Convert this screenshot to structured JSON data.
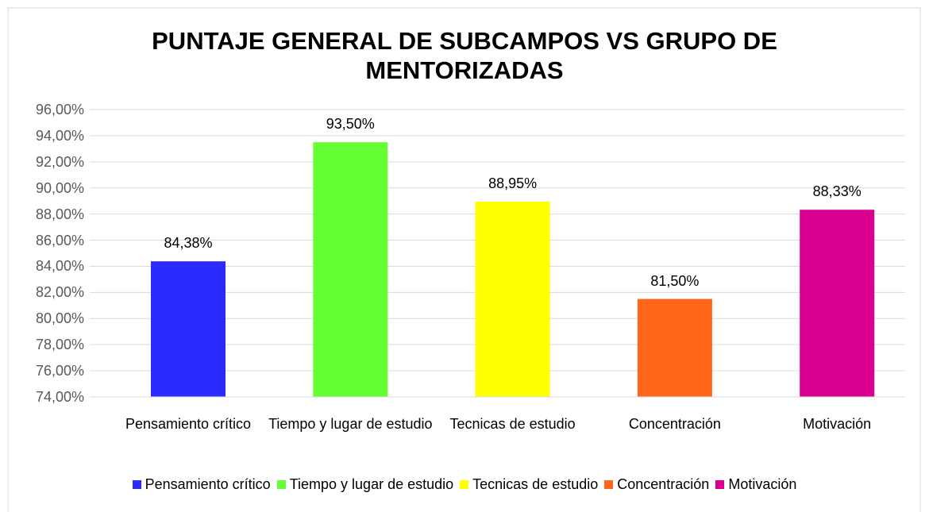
{
  "chart_data": {
    "type": "bar",
    "title": "PUNTAJE GENERAL DE SUBCAMPOS VS GRUPO DE MENTORIZADAS",
    "categories": [
      "Pensamiento crítico",
      "Tiempo y lugar de estudio",
      "Tecnicas de estudio",
      "Concentración",
      "Motivación"
    ],
    "values": [
      84.38,
      93.5,
      88.95,
      81.5,
      88.33
    ],
    "value_labels": [
      "84,38%",
      "93,50%",
      "88,95%",
      "81,50%",
      "88,33%"
    ],
    "colors": [
      "#2b2bff",
      "#66ff33",
      "#ffff00",
      "#ff6619",
      "#d9008f"
    ],
    "ylim": [
      74,
      96
    ],
    "yticks": [
      {
        "value": 74,
        "label": "74,00%"
      },
      {
        "value": 76,
        "label": "76,00%"
      },
      {
        "value": 78,
        "label": "78,00%"
      },
      {
        "value": 80,
        "label": "80,00%"
      },
      {
        "value": 82,
        "label": "82,00%"
      },
      {
        "value": 84,
        "label": "84,00%"
      },
      {
        "value": 86,
        "label": "86,00%"
      },
      {
        "value": 88,
        "label": "88,00%"
      },
      {
        "value": 90,
        "label": "90,00%"
      },
      {
        "value": 92,
        "label": "92,00%"
      },
      {
        "value": 94,
        "label": "94,00%"
      },
      {
        "value": 96,
        "label": "96,00%"
      }
    ],
    "grid": true,
    "legend": "bottom"
  }
}
